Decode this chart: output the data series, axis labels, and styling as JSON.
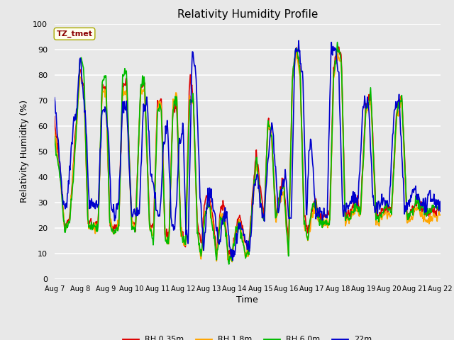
{
  "title": "Relativity Humidity Profile",
  "xlabel": "Time",
  "ylabel": "Relativity Humidity (%)",
  "ylim": [
    0,
    100
  ],
  "annotation": "TZ_tmet",
  "annotation_color": "#8B0000",
  "annotation_bg": "#FFFFEE",
  "bg_color": "#E8E8E8",
  "plot_bg": "#E8E8E8",
  "grid_color": "#FFFFFF",
  "line_colors": {
    "rh035": "#DD0000",
    "rh18": "#FFA500",
    "rh60": "#00BB00",
    "rh22": "#0000CC"
  },
  "legend_labels": [
    "RH 0.35m",
    "RH 1.8m",
    "RH 6.0m",
    "22m"
  ],
  "xtick_labels": [
    "Aug 7",
    "Aug 8",
    "Aug 9",
    "Aug 10",
    "Aug 11",
    "Aug 12",
    "Aug 13",
    "Aug 14",
    "Aug 15",
    "Aug 16",
    "Aug 17",
    "Aug 18",
    "Aug 19",
    "Aug 20",
    "Aug 21",
    "Aug 22"
  ],
  "n_days": 15,
  "points_per_day": 48
}
